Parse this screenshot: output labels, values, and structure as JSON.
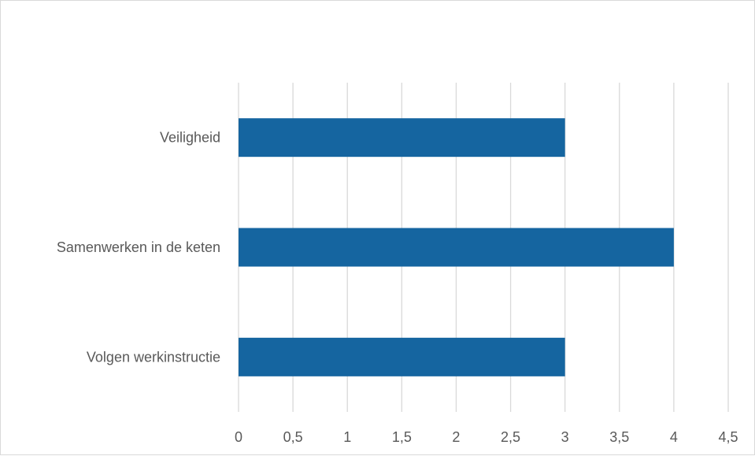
{
  "chart_data": {
    "type": "bar",
    "orientation": "horizontal",
    "categories": [
      "Veiligheid",
      "Samenwerken in de keten",
      "Volgen werkinstructie"
    ],
    "values": [
      3,
      4,
      3
    ],
    "xlim": [
      0,
      4.5
    ],
    "x_ticks": [
      "0",
      "0,5",
      "1",
      "1,5",
      "2",
      "2,5",
      "3",
      "3,5",
      "4",
      "4,5"
    ],
    "grid": "vertical",
    "legend": "none",
    "bar_color": "#1565a0",
    "grid_color": "#d9d9d9",
    "label_color": "#595959"
  }
}
